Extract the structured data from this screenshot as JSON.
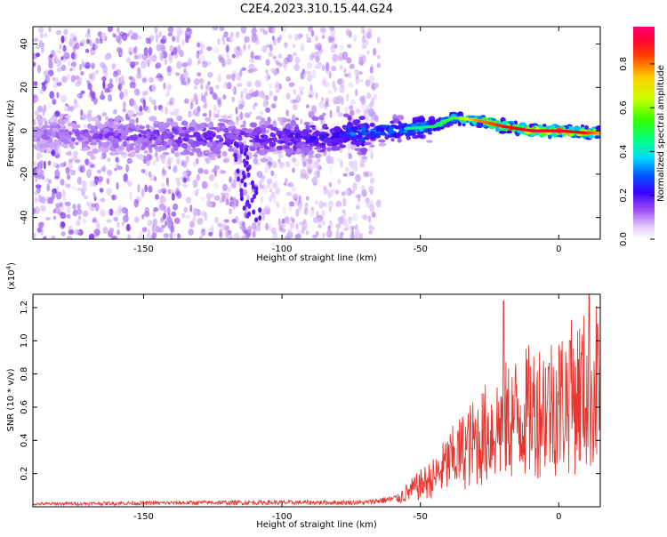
{
  "title": "C2E4.2023.310.15.44.G24",
  "chart_data": [
    {
      "type": "heatmap",
      "xlabel": "Height of straight line (km)",
      "ylabel": "Frequency (Hz)",
      "xlim": [
        -190,
        15
      ],
      "ylim": [
        -50,
        48
      ],
      "xticks": [
        -150,
        -100,
        -50,
        0
      ],
      "yticks": [
        -40,
        -20,
        0,
        20,
        40
      ],
      "colorbar": {
        "label": "Normalized spectral amplitude",
        "ticks": [
          0.0,
          0.2,
          0.4,
          0.6,
          0.8
        ],
        "range": [
          0,
          0.97
        ],
        "colormap": [
          "#ffffff",
          "#c9a0f5",
          "#7b2ff0",
          "#3a00ff",
          "#0055ff",
          "#00d8ff",
          "#00ff66",
          "#66ff00",
          "#ffff00",
          "#ff8800",
          "#ff0000",
          "#ff0066"
        ]
      },
      "ridge": [
        {
          "x": -190,
          "f": -2,
          "amp": 0.15
        },
        {
          "x": -160,
          "f": -2,
          "amp": 0.2
        },
        {
          "x": -130,
          "f": -3,
          "amp": 0.25
        },
        {
          "x": -110,
          "f": -4,
          "amp": 0.25
        },
        {
          "x": -90,
          "f": -3,
          "amp": 0.3
        },
        {
          "x": -70,
          "f": -1,
          "amp": 0.45
        },
        {
          "x": -55,
          "f": 1,
          "amp": 0.5
        },
        {
          "x": -45,
          "f": 2,
          "amp": 0.55
        },
        {
          "x": -38,
          "f": 6,
          "amp": 0.6
        },
        {
          "x": -30,
          "f": 5,
          "amp": 0.8
        },
        {
          "x": -20,
          "f": 2,
          "amp": 0.9
        },
        {
          "x": -10,
          "f": 0,
          "amp": 0.95
        },
        {
          "x": 0,
          "f": 0,
          "amp": 0.95
        },
        {
          "x": 10,
          "f": -1,
          "amp": 0.9
        },
        {
          "x": 15,
          "f": -1,
          "amp": 0.8
        }
      ],
      "grid": false
    },
    {
      "type": "line",
      "xlabel": "Height of straight line (km)",
      "ylabel": "SNR (10 * v/v)",
      "y_exponent_label": "(x10",
      "y_exponent": "4",
      "y_exponent_close": ")",
      "xlim": [
        -190,
        15
      ],
      "ylim": [
        0,
        1.28
      ],
      "xticks": [
        -150,
        -100,
        -50,
        0
      ],
      "yticks": [
        0.2,
        0.4,
        0.6,
        0.8,
        1.0,
        1.2
      ],
      "color": "#e8352f",
      "envelope": [
        {
          "x": -190,
          "y": 0.02
        },
        {
          "x": -120,
          "y": 0.03
        },
        {
          "x": -70,
          "y": 0.03
        },
        {
          "x": -58,
          "y": 0.06
        },
        {
          "x": -50,
          "y": 0.15
        },
        {
          "x": -45,
          "y": 0.2
        },
        {
          "x": -40,
          "y": 0.3
        },
        {
          "x": -35,
          "y": 0.38
        },
        {
          "x": -30,
          "y": 0.45
        },
        {
          "x": -25,
          "y": 0.52
        },
        {
          "x": -20,
          "y": 0.58
        },
        {
          "x": -15,
          "y": 0.62
        },
        {
          "x": -10,
          "y": 0.66
        },
        {
          "x": -5,
          "y": 0.7
        },
        {
          "x": 0,
          "y": 0.72
        },
        {
          "x": 5,
          "y": 0.76
        },
        {
          "x": 10,
          "y": 0.8
        },
        {
          "x": 15,
          "y": 0.85
        }
      ],
      "peaks": [
        {
          "x": -20,
          "y": 1.24
        },
        {
          "x": 11,
          "y": 1.28
        },
        {
          "x": 14,
          "y": 1.1
        },
        {
          "x": 4,
          "y": 1.0
        }
      ],
      "grid": false
    }
  ]
}
